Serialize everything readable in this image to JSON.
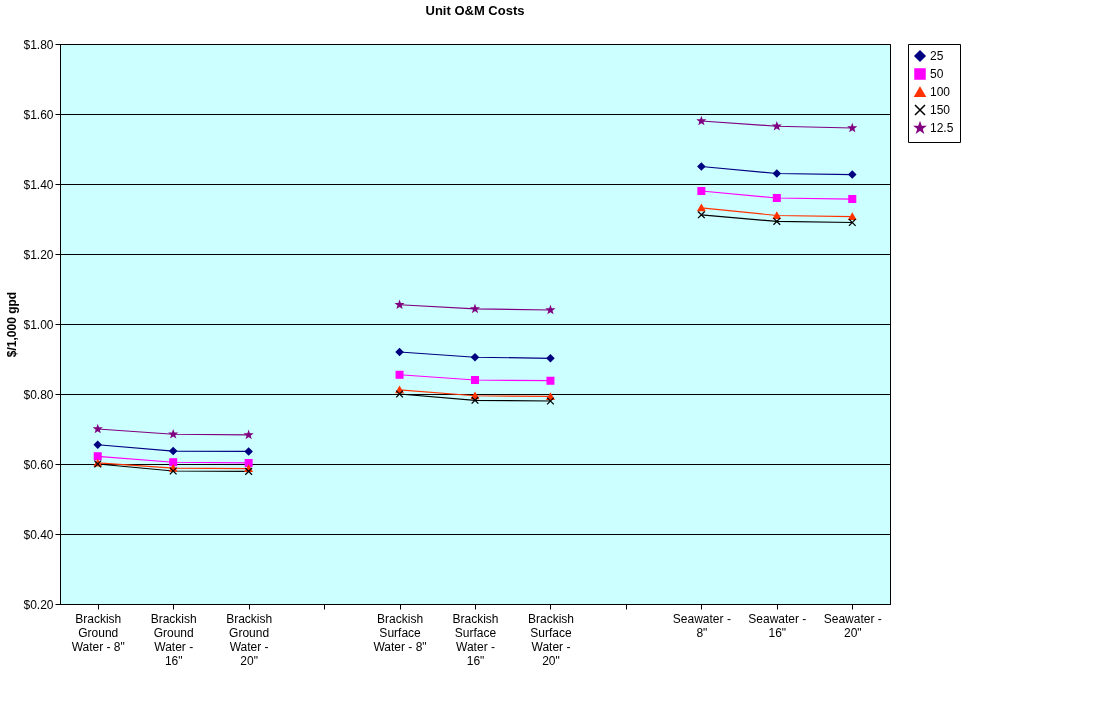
{
  "chart_data": {
    "type": "line",
    "title": "Unit O&M Costs",
    "ylabel": "$/1,000 gpd",
    "categories": [
      "Brackish Ground Water - 8\"",
      "Brackish Ground Water - 16\"",
      "Brackish Ground Water - 20\"",
      null,
      "Brackish Surface Water - 8\"",
      "Brackish Surface Water - 16\"",
      "Brackish Surface Water - 20\"",
      null,
      "Seawater - 8\"",
      "Seawater - 16\"",
      "Seawater - 20\""
    ],
    "series": [
      {
        "name": "25",
        "color": "#000080",
        "marker": "diamond",
        "values": [
          0.655,
          0.637,
          0.636,
          null,
          0.92,
          0.905,
          0.902,
          null,
          1.45,
          1.43,
          1.427
        ]
      },
      {
        "name": "50",
        "color": "#ff00ff",
        "marker": "square",
        "values": [
          0.622,
          0.605,
          0.603,
          null,
          0.855,
          0.84,
          0.838,
          null,
          1.38,
          1.36,
          1.357
        ]
      },
      {
        "name": "100",
        "color": "#ff3300",
        "marker": "triangle",
        "values": [
          0.603,
          0.588,
          0.587,
          null,
          0.812,
          0.795,
          0.793,
          null,
          1.332,
          1.31,
          1.307
        ]
      },
      {
        "name": "150",
        "color": "#000000",
        "marker": "cross",
        "values": [
          0.6,
          0.58,
          0.579,
          null,
          0.8,
          0.782,
          0.78,
          null,
          1.312,
          1.293,
          1.29
        ]
      },
      {
        "name": "12.5",
        "color": "#800080",
        "marker": "star",
        "values": [
          0.7,
          0.685,
          0.683,
          null,
          1.055,
          1.043,
          1.04,
          null,
          1.58,
          1.565,
          1.56
        ]
      }
    ],
    "ylim": [
      0.2,
      1.8
    ],
    "yticks": [
      {
        "value": 0.2,
        "label": "$0.20"
      },
      {
        "value": 0.4,
        "label": "$0.40"
      },
      {
        "value": 0.6,
        "label": "$0.60"
      },
      {
        "value": 0.8,
        "label": "$0.80"
      },
      {
        "value": 1.0,
        "label": "$1.00"
      },
      {
        "value": 1.2,
        "label": "$1.20"
      },
      {
        "value": 1.4,
        "label": "$1.40"
      },
      {
        "value": 1.6,
        "label": "$1.60"
      },
      {
        "value": 1.8,
        "label": "$1.80"
      }
    ],
    "grid": "y",
    "legend": "right",
    "line_style": "solid"
  }
}
